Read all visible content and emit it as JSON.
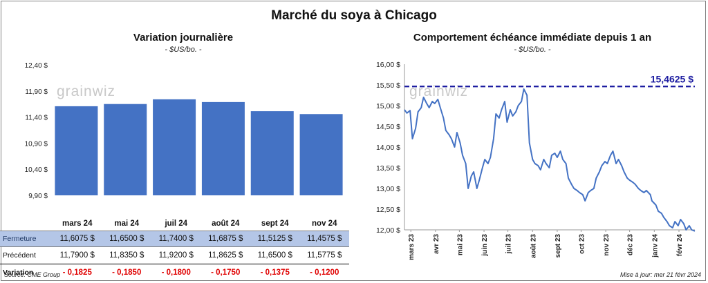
{
  "titles": {
    "main": "Marché du soya à Chicago",
    "left": "Variation  journalière",
    "left_sub": "- $US/bo. -",
    "right": "Comportement  échéance immédiate depuis 1 an",
    "right_sub": "- $US/bo. -"
  },
  "footer": {
    "source": "Source: CME Group",
    "updated": "Mise à jour: mer 21 févr 2024"
  },
  "watermark": "grainwiz",
  "colors": {
    "bar": "#4472c4",
    "line": "#4472c4",
    "ref_line": "#1a1aa0",
    "negative": "#e00000",
    "close_row_bg": "#b4c6e7"
  },
  "chart_data": [
    {
      "type": "bar",
      "categories": [
        "mars 24",
        "mai 24",
        "juil 24",
        "août 24",
        "sept 24",
        "nov 24"
      ],
      "values": [
        11.6075,
        11.65,
        11.74,
        11.6875,
        11.5125,
        11.4575
      ],
      "ylim": [
        9.9,
        12.4
      ],
      "yticks": [
        9.9,
        10.4,
        10.9,
        11.4,
        11.9,
        12.4
      ],
      "ytick_labels": [
        "9,90 $",
        "10,40 $",
        "10,90 $",
        "11,40 $",
        "11,90 $",
        "12,40 $"
      ],
      "grid": false
    },
    {
      "type": "line",
      "ylim": [
        12.0,
        16.0
      ],
      "yticks": [
        12.0,
        12.5,
        13.0,
        13.5,
        14.0,
        14.5,
        15.0,
        15.5,
        16.0
      ],
      "ytick_labels": [
        "12,00 $",
        "12,50 $",
        "13,00 $",
        "13,50 $",
        "14,00 $",
        "14,50 $",
        "15,00 $",
        "15,50 $",
        "16,00 $"
      ],
      "x_start": "2023-02-21",
      "x_end": "2024-02-21",
      "xtick_labels": [
        "mars 23",
        "avr 23",
        "mai 23",
        "juin 23",
        "juil 23",
        "août 23",
        "sept 23",
        "oct 23",
        "nov 23",
        "déc 23",
        "janv 24",
        "févr 24"
      ],
      "xtick_dates": [
        "2023-03-01",
        "2023-04-01",
        "2023-05-01",
        "2023-06-01",
        "2023-07-01",
        "2023-08-01",
        "2023-09-01",
        "2023-10-01",
        "2023-11-01",
        "2023-12-01",
        "2024-01-01",
        "2024-02-01"
      ],
      "reference_line": {
        "value": 15.4625,
        "label": "15,4625 $",
        "style": "dashed"
      },
      "series": [
        {
          "x": [
            "2023-02-21",
            "2023-02-24",
            "2023-02-28",
            "2023-03-03",
            "2023-03-07",
            "2023-03-10",
            "2023-03-14",
            "2023-03-17",
            "2023-03-21",
            "2023-03-24",
            "2023-03-28",
            "2023-03-31",
            "2023-04-04",
            "2023-04-07",
            "2023-04-11",
            "2023-04-14",
            "2023-04-18",
            "2023-04-21",
            "2023-04-25",
            "2023-04-28",
            "2023-05-02",
            "2023-05-05",
            "2023-05-09",
            "2023-05-12",
            "2023-05-16",
            "2023-05-19",
            "2023-05-23",
            "2023-05-26",
            "2023-05-30",
            "2023-06-02",
            "2023-06-06",
            "2023-06-09",
            "2023-06-13",
            "2023-06-16",
            "2023-06-20",
            "2023-06-23",
            "2023-06-27",
            "2023-06-30",
            "2023-07-04",
            "2023-07-07",
            "2023-07-11",
            "2023-07-14",
            "2023-07-18",
            "2023-07-21",
            "2023-07-25",
            "2023-07-28",
            "2023-08-01",
            "2023-08-04",
            "2023-08-08",
            "2023-08-11",
            "2023-08-15",
            "2023-08-18",
            "2023-08-22",
            "2023-08-25",
            "2023-08-29",
            "2023-09-01",
            "2023-09-05",
            "2023-09-08",
            "2023-09-12",
            "2023-09-15",
            "2023-09-19",
            "2023-09-22",
            "2023-09-26",
            "2023-09-29",
            "2023-10-03",
            "2023-10-06",
            "2023-10-10",
            "2023-10-13",
            "2023-10-17",
            "2023-10-20",
            "2023-10-24",
            "2023-10-27",
            "2023-10-31",
            "2023-11-03",
            "2023-11-07",
            "2023-11-10",
            "2023-11-14",
            "2023-11-17",
            "2023-11-21",
            "2023-11-24",
            "2023-11-28",
            "2023-12-01",
            "2023-12-05",
            "2023-12-08",
            "2023-12-12",
            "2023-12-15",
            "2023-12-19",
            "2023-12-22",
            "2023-12-27",
            "2023-12-29",
            "2024-01-03",
            "2024-01-06",
            "2024-01-10",
            "2024-01-13",
            "2024-01-17",
            "2024-01-20",
            "2024-01-24",
            "2024-01-27",
            "2024-01-31",
            "2024-02-03",
            "2024-02-07",
            "2024-02-10",
            "2024-02-14",
            "2024-02-17",
            "2024-02-21"
          ],
          "y": [
            14.9,
            14.82,
            14.88,
            14.2,
            14.45,
            14.85,
            14.95,
            15.2,
            15.05,
            14.95,
            15.1,
            15.05,
            15.15,
            14.95,
            14.7,
            14.4,
            14.3,
            14.2,
            14.0,
            14.35,
            14.1,
            13.8,
            13.6,
            13.0,
            13.3,
            13.4,
            13.0,
            13.2,
            13.5,
            13.7,
            13.6,
            13.75,
            14.2,
            14.8,
            14.7,
            14.9,
            15.1,
            14.6,
            14.9,
            14.75,
            14.85,
            15.0,
            15.1,
            15.4,
            15.25,
            14.1,
            13.7,
            13.6,
            13.55,
            13.45,
            13.7,
            13.6,
            13.5,
            13.8,
            13.85,
            13.75,
            13.9,
            13.7,
            13.6,
            13.25,
            13.1,
            13.0,
            12.95,
            12.9,
            12.85,
            12.7,
            12.9,
            12.95,
            13.0,
            13.25,
            13.4,
            13.55,
            13.65,
            13.6,
            13.8,
            13.9,
            13.6,
            13.7,
            13.55,
            13.4,
            13.25,
            13.2,
            13.15,
            13.1,
            13.0,
            12.95,
            12.9,
            12.95,
            12.85,
            12.7,
            12.6,
            12.45,
            12.4,
            12.3,
            12.2,
            12.1,
            12.05,
            12.2,
            12.1,
            12.25,
            12.15,
            12.0,
            12.1,
            12.0,
            11.97
          ]
        }
      ]
    }
  ],
  "table": {
    "rows": [
      {
        "label": "",
        "values": [
          "mars 24",
          "mai 24",
          "juil 24",
          "août 24",
          "sept 24",
          "nov 24"
        ]
      },
      {
        "label": "Fermeture",
        "values": [
          "11,6075  $",
          "11,6500  $",
          "11,7400  $",
          "11,6875  $",
          "11,5125  $",
          "11,4575  $"
        ]
      },
      {
        "label": "Précédent",
        "values": [
          "11,7900  $",
          "11,8350  $",
          "11,9200  $",
          "11,8625  $",
          "11,6500  $",
          "11,5775  $"
        ]
      },
      {
        "label": "Variation",
        "values": [
          "- 0,1825",
          "- 0,1850",
          "- 0,1800",
          "- 0,1750",
          "- 0,1375",
          "- 0,1200"
        ]
      }
    ]
  }
}
